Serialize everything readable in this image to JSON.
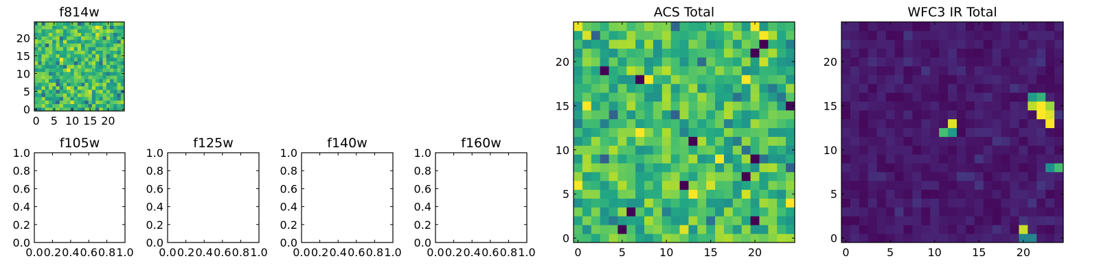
{
  "chart_data": [
    {
      "id": "f814w",
      "type": "heatmap",
      "title": "f814w",
      "colormap": "viridis",
      "grid_size": 25,
      "xlim": [
        -0.5,
        24.5
      ],
      "ylim": [
        -0.5,
        24.5
      ],
      "x_ticks": [
        0,
        5,
        10,
        15,
        20
      ],
      "y_ticks": [
        0,
        5,
        10,
        15,
        20
      ],
      "value_range": [
        0,
        1
      ],
      "seed": 814,
      "profile": "acs"
    },
    {
      "id": "f105w",
      "type": "empty",
      "title": "f105w",
      "xlim": [
        0,
        1
      ],
      "ylim": [
        0,
        1
      ],
      "x_ticks": [
        "0.0",
        "0.2",
        "0.4",
        "0.6",
        "0.8",
        "1.0"
      ],
      "y_ticks": [
        "0.0",
        "0.2",
        "0.4",
        "0.6",
        "0.8",
        "1.0"
      ]
    },
    {
      "id": "f125w",
      "type": "empty",
      "title": "f125w",
      "xlim": [
        0,
        1
      ],
      "ylim": [
        0,
        1
      ],
      "x_ticks": [
        "0.0",
        "0.2",
        "0.4",
        "0.6",
        "0.8",
        "1.0"
      ],
      "y_ticks": [
        "0.0",
        "0.2",
        "0.4",
        "0.6",
        "0.8",
        "1.0"
      ]
    },
    {
      "id": "f140w",
      "type": "empty",
      "title": "f140w",
      "xlim": [
        0,
        1
      ],
      "ylim": [
        0,
        1
      ],
      "x_ticks": [
        "0.0",
        "0.2",
        "0.4",
        "0.6",
        "0.8",
        "1.0"
      ],
      "y_ticks": [
        "0.0",
        "0.2",
        "0.4",
        "0.6",
        "0.8",
        "1.0"
      ]
    },
    {
      "id": "f160w",
      "type": "empty",
      "title": "f160w",
      "xlim": [
        0,
        1
      ],
      "ylim": [
        0,
        1
      ],
      "x_ticks": [
        "0.0",
        "0.2",
        "0.4",
        "0.6",
        "0.8",
        "1.0"
      ],
      "y_ticks": [
        "0.0",
        "0.2",
        "0.4",
        "0.6",
        "0.8",
        "1.0"
      ]
    },
    {
      "id": "acs-total",
      "type": "heatmap",
      "title": "ACS Total",
      "colormap": "viridis",
      "grid_size": 25,
      "xlim": [
        -0.5,
        24.5
      ],
      "ylim": [
        -0.5,
        24.5
      ],
      "x_ticks": [
        0,
        5,
        10,
        15,
        20
      ],
      "y_ticks": [
        0,
        5,
        10,
        15,
        20
      ],
      "value_range": [
        0,
        1
      ],
      "seed": 4242,
      "profile": "acs",
      "dark_cells": [
        [
          3,
          19
        ],
        [
          7,
          18
        ],
        [
          20,
          21
        ],
        [
          21,
          22
        ],
        [
          13,
          11
        ],
        [
          12,
          6
        ],
        [
          19,
          7
        ],
        [
          20,
          9
        ],
        [
          20,
          2
        ],
        [
          6,
          3
        ],
        [
          5,
          1
        ],
        [
          24,
          15
        ]
      ],
      "bright_cells": [
        [
          20,
          24
        ],
        [
          8,
          18
        ],
        [
          1,
          15
        ],
        [
          7,
          12
        ],
        [
          16,
          9
        ],
        [
          13,
          5
        ],
        [
          0,
          6
        ],
        [
          24,
          4
        ],
        [
          19,
          18
        ]
      ]
    },
    {
      "id": "wfc3-ir-total",
      "type": "heatmap",
      "title": "WFC3 IR Total",
      "colormap": "viridis",
      "grid_size": 25,
      "xlim": [
        -0.5,
        24.5
      ],
      "ylim": [
        -0.5,
        24.5
      ],
      "x_ticks": [
        0,
        5,
        10,
        15,
        20
      ],
      "y_ticks": [
        0,
        5,
        10,
        15,
        20
      ],
      "value_range": [
        0,
        1
      ],
      "seed": 1313,
      "profile": "ir",
      "hot_cells": [
        [
          21,
          15,
          0.9
        ],
        [
          22,
          15,
          1.0
        ],
        [
          22,
          14,
          1.0
        ],
        [
          23,
          14,
          0.95
        ],
        [
          23,
          13,
          1.0
        ],
        [
          21,
          16,
          0.55
        ],
        [
          22,
          16,
          0.65
        ],
        [
          23,
          15,
          0.85
        ],
        [
          12,
          13,
          0.95
        ],
        [
          11,
          12,
          0.7
        ],
        [
          12,
          12,
          0.55
        ],
        [
          24,
          8,
          0.7
        ],
        [
          23,
          8,
          0.5
        ],
        [
          20,
          1,
          0.92
        ],
        [
          20,
          0,
          0.45
        ],
        [
          21,
          0,
          0.45
        ]
      ]
    }
  ]
}
